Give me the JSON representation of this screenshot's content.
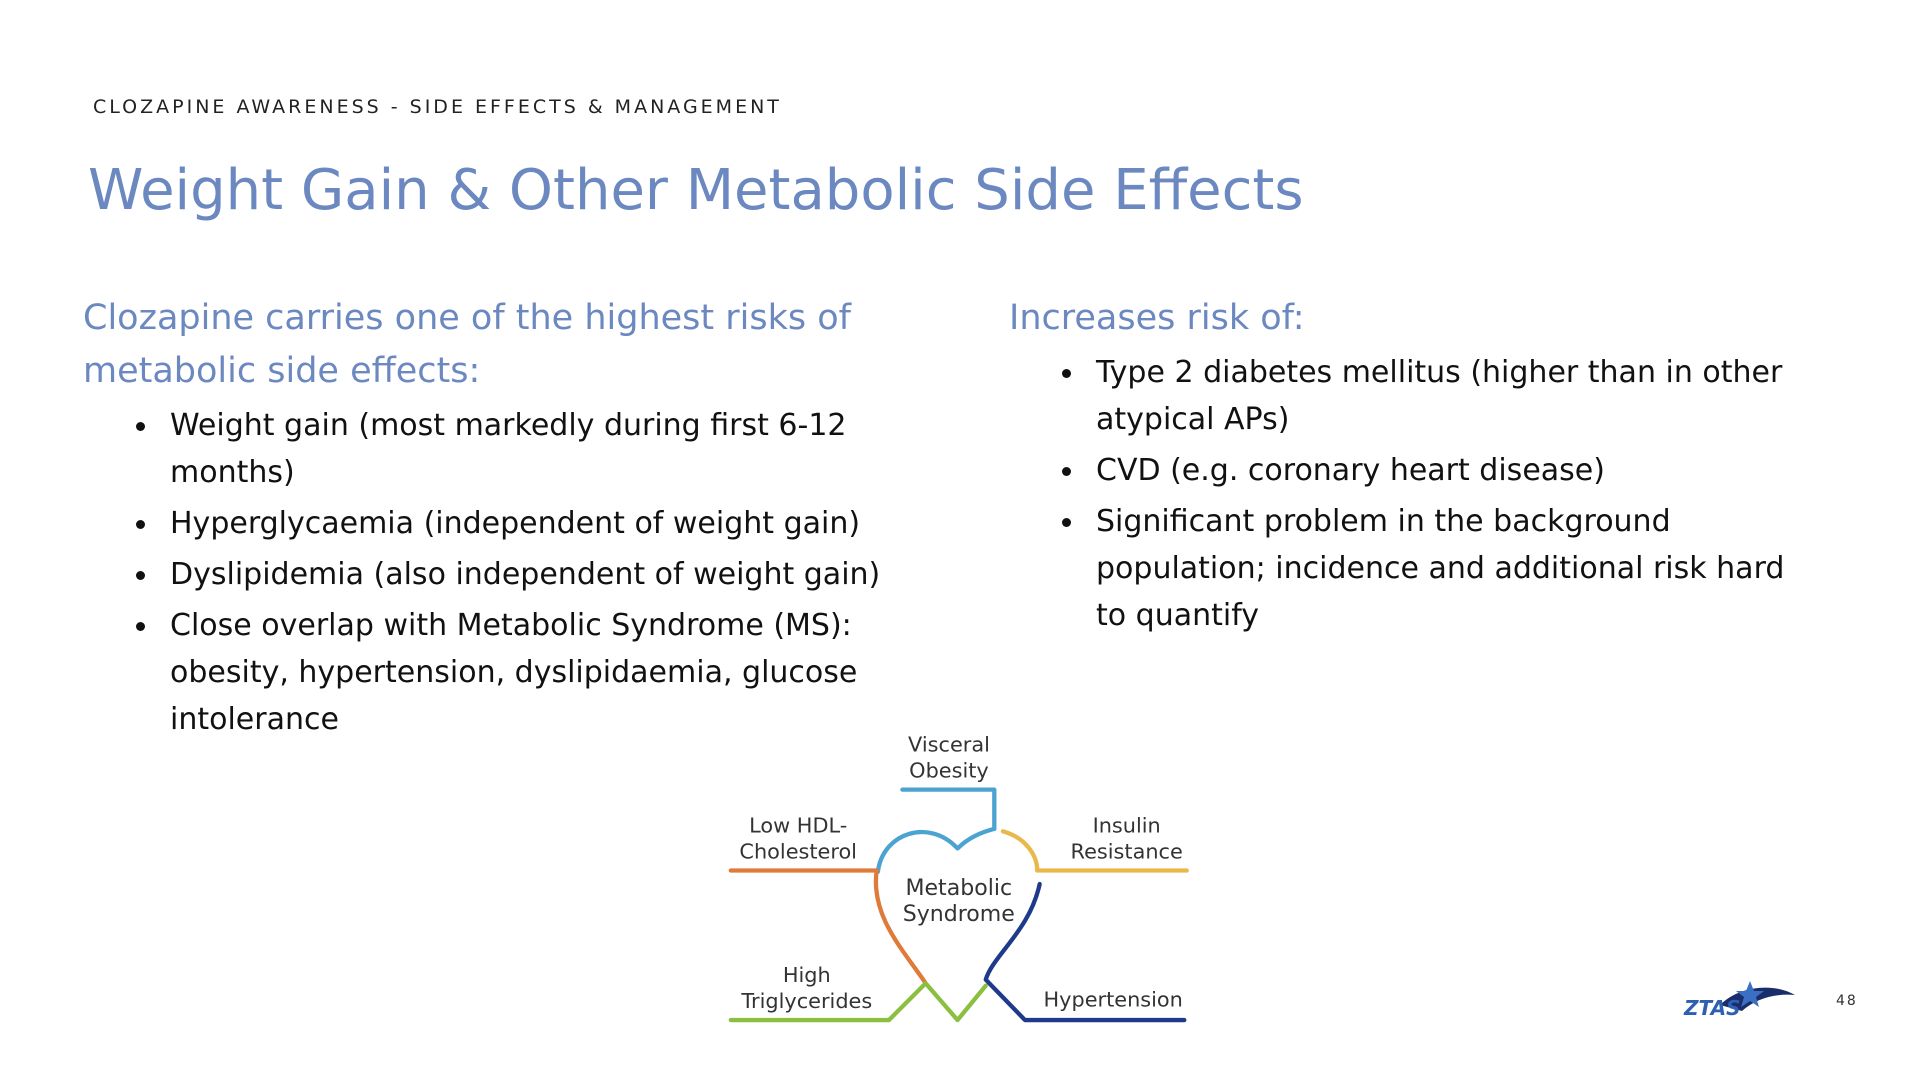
{
  "header": {
    "kicker": "CLOZAPINE AWARENESS - SIDE EFFECTS & MANAGEMENT",
    "title": "Weight Gain & Other Metabolic Side Effects"
  },
  "left": {
    "heading": "Clozapine carries one of the highest risks of metabolic side effects:",
    "bullets": [
      "Weight gain (most markedly during first 6-12 months)",
      "Hyperglycaemia (independent of weight gain)",
      "Dyslipidemia (also independent of weight gain)",
      "Close overlap with Metabolic Syndrome (MS): obesity, hypertension, dyslipidaemia, glucose intolerance"
    ]
  },
  "right": {
    "heading": "Increases risk of:",
    "bullets": [
      "Type 2 diabetes mellitus (higher than in other atypical APs)",
      "CVD (e.g. coronary heart disease)",
      "Significant problem in the background population; incidence and additional risk hard to quantify"
    ]
  },
  "diagram": {
    "center": [
      "Metabolic",
      "Syndrome"
    ],
    "labels": {
      "visceral": [
        "Visceral",
        "Obesity"
      ],
      "hdl": [
        "Low HDL-",
        "Cholesterol"
      ],
      "insulin": [
        "Insulin",
        "Resistance"
      ],
      "trig": [
        "High",
        "Triglycerides"
      ],
      "hypertension": [
        "Hypertension"
      ]
    }
  },
  "footer": {
    "logo": "ZTAS",
    "page_number": "48"
  }
}
